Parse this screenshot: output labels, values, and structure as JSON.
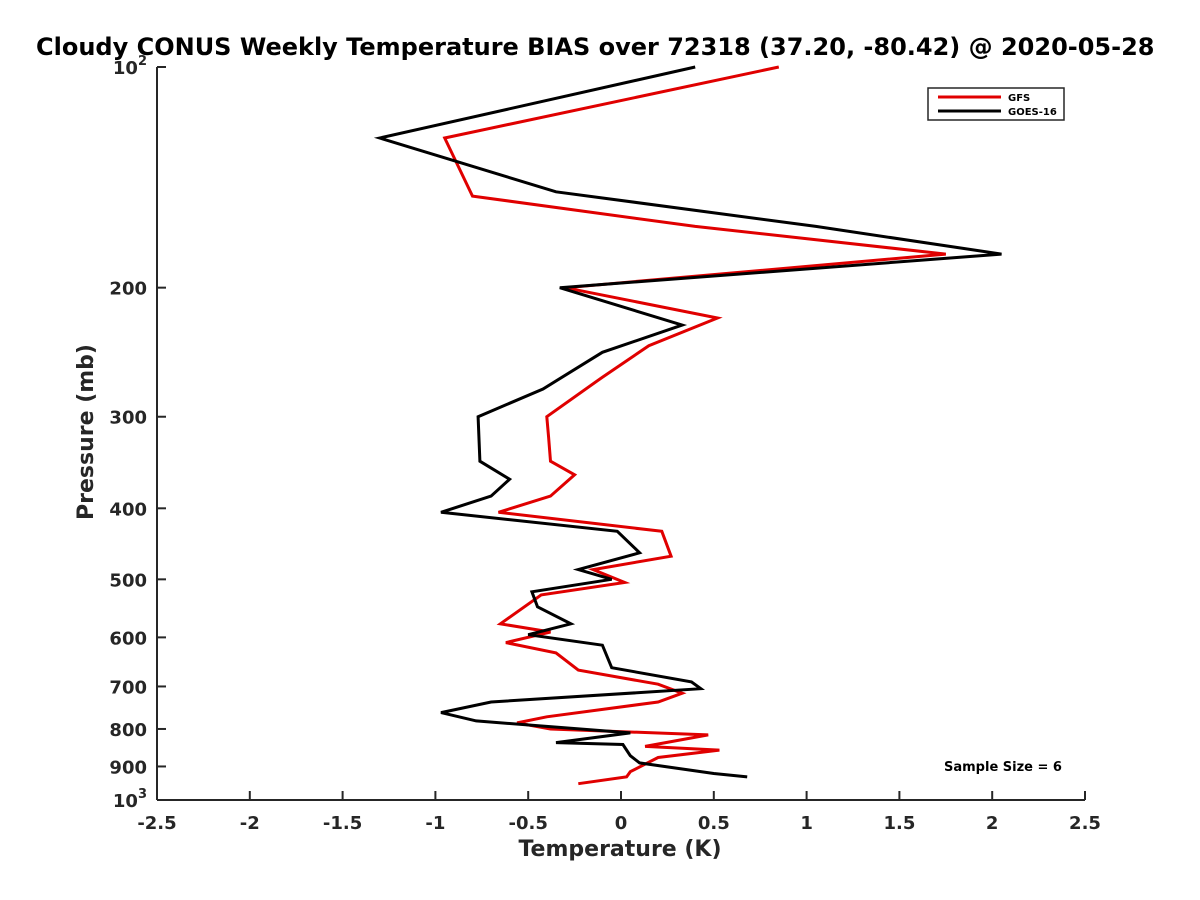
{
  "chart_data": {
    "type": "line",
    "title": "Cloudy CONUS Weekly Temperature BIAS over 72318 (37.20, -80.42) @ 2020-05-28",
    "xlabel": "Temperature (K)",
    "ylabel": "Pressure (mb)",
    "xlim": [
      -2.5,
      2.5
    ],
    "ylim": [
      100,
      1000
    ],
    "yscale": "log",
    "yreversed": true,
    "x_ticks": [
      -2.5,
      -2,
      -1.5,
      -1,
      -0.5,
      0,
      0.5,
      1,
      1.5,
      2,
      2.5
    ],
    "x_tick_labels": [
      "-2.5",
      "-2",
      "-1.5",
      "-1",
      "-0.5",
      "0",
      "0.5",
      "1",
      "1.5",
      "2",
      "2.5"
    ],
    "y_ticks": [
      100,
      200,
      300,
      400,
      500,
      600,
      700,
      800,
      900,
      1000
    ],
    "y_tick_labels": [
      {
        "base": "10",
        "exp": "2"
      },
      {
        "base": "200",
        "exp": ""
      },
      {
        "base": "300",
        "exp": ""
      },
      {
        "base": "400",
        "exp": ""
      },
      {
        "base": "500",
        "exp": ""
      },
      {
        "base": "600",
        "exp": ""
      },
      {
        "base": "700",
        "exp": ""
      },
      {
        "base": "800",
        "exp": ""
      },
      {
        "base": "900",
        "exp": ""
      },
      {
        "base": "10",
        "exp": "3"
      }
    ],
    "grid": false,
    "legend_position": "top-right",
    "annotation": "Sample Size = 6",
    "series": [
      {
        "name": "GFS",
        "color": "#e00000",
        "points": [
          [
            0.85,
            100
          ],
          [
            -0.95,
            125
          ],
          [
            -0.8,
            150
          ],
          [
            0.4,
            165
          ],
          [
            1.75,
            180
          ],
          [
            -0.3,
            200
          ],
          [
            0.52,
            220
          ],
          [
            0.15,
            240
          ],
          [
            -0.1,
            265
          ],
          [
            -0.4,
            300
          ],
          [
            -0.39,
            320
          ],
          [
            -0.38,
            345
          ],
          [
            -0.25,
            360
          ],
          [
            -0.38,
            385
          ],
          [
            -0.66,
            405
          ],
          [
            0.22,
            430
          ],
          [
            0.27,
            465
          ],
          [
            -0.15,
            485
          ],
          [
            0.02,
            505
          ],
          [
            -0.43,
            525
          ],
          [
            -0.65,
            575
          ],
          [
            -0.38,
            590
          ],
          [
            -0.62,
            610
          ],
          [
            -0.35,
            630
          ],
          [
            -0.23,
            665
          ],
          [
            0.2,
            695
          ],
          [
            0.33,
            715
          ],
          [
            0.2,
            735
          ],
          [
            -0.4,
            770
          ],
          [
            -0.56,
            785
          ],
          [
            -0.38,
            800
          ],
          [
            0.47,
            815
          ],
          [
            0.13,
            845
          ],
          [
            0.53,
            855
          ],
          [
            0.2,
            875
          ],
          [
            0.05,
            915
          ],
          [
            0.03,
            930
          ],
          [
            -0.23,
            950
          ]
        ]
      },
      {
        "name": "GOES-16",
        "color": "#000000",
        "points": [
          [
            0.4,
            100
          ],
          [
            -1.3,
            125
          ],
          [
            -0.35,
            148
          ],
          [
            1.05,
            165
          ],
          [
            2.05,
            180
          ],
          [
            -0.33,
            200
          ],
          [
            0.33,
            225
          ],
          [
            -0.1,
            245
          ],
          [
            -0.42,
            275
          ],
          [
            -0.77,
            300
          ],
          [
            -0.76,
            345
          ],
          [
            -0.6,
            365
          ],
          [
            -0.7,
            385
          ],
          [
            -0.97,
            405
          ],
          [
            -0.02,
            430
          ],
          [
            0.1,
            460
          ],
          [
            -0.23,
            485
          ],
          [
            -0.05,
            500
          ],
          [
            -0.48,
            520
          ],
          [
            -0.45,
            545
          ],
          [
            -0.27,
            575
          ],
          [
            -0.5,
            595
          ],
          [
            -0.1,
            615
          ],
          [
            -0.05,
            660
          ],
          [
            0.38,
            690
          ],
          [
            0.43,
            705
          ],
          [
            -0.7,
            735
          ],
          [
            -0.97,
            760
          ],
          [
            -0.78,
            780
          ],
          [
            0.05,
            810
          ],
          [
            -0.35,
            835
          ],
          [
            0.01,
            840
          ],
          [
            0.05,
            870
          ],
          [
            0.1,
            890
          ],
          [
            0.5,
            920
          ],
          [
            0.68,
            930
          ]
        ]
      }
    ]
  }
}
